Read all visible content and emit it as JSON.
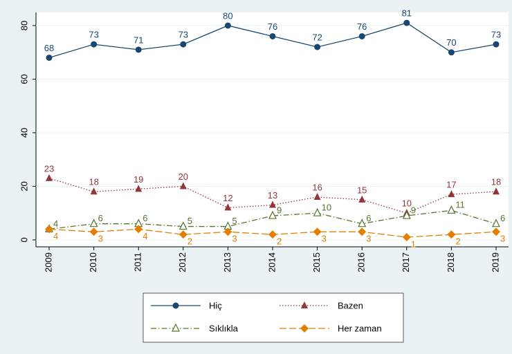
{
  "chart_data": {
    "type": "line",
    "categories": [
      "2009",
      "2010",
      "2011",
      "2012",
      "2013",
      "2014",
      "2015",
      "2016",
      "2017",
      "2018",
      "2019"
    ],
    "series": [
      {
        "name": "Hiç",
        "color": "#1a476f",
        "marker": "circle",
        "line_style": "solid",
        "label_position": "above",
        "values": [
          68,
          73,
          71,
          73,
          80,
          76,
          72,
          76,
          81,
          70,
          73
        ]
      },
      {
        "name": "Bazen",
        "color": "#90353b",
        "marker": "triangle",
        "line_style": "dotted",
        "label_position": "above",
        "values": [
          23,
          18,
          19,
          20,
          12,
          13,
          16,
          15,
          10,
          17,
          18
        ]
      },
      {
        "name": "Sıklıkla",
        "color": "#55752f",
        "marker": "triangle-hollow",
        "line_style": "dash-dot",
        "label_position": "right",
        "values": [
          4,
          6,
          6,
          5,
          5,
          9,
          10,
          6,
          9,
          11,
          6
        ]
      },
      {
        "name": "Her zaman",
        "color": "#e37e00",
        "marker": "diamond",
        "line_style": "dashed",
        "label_position": "below-right",
        "values": [
          4,
          3,
          4,
          2,
          3,
          2,
          3,
          3,
          1,
          2,
          3
        ]
      }
    ],
    "ylim": [
      -2.6,
      84.9
    ],
    "yticks": [
      0,
      20,
      40,
      60,
      80
    ],
    "grid": true,
    "legend": "bottom"
  }
}
